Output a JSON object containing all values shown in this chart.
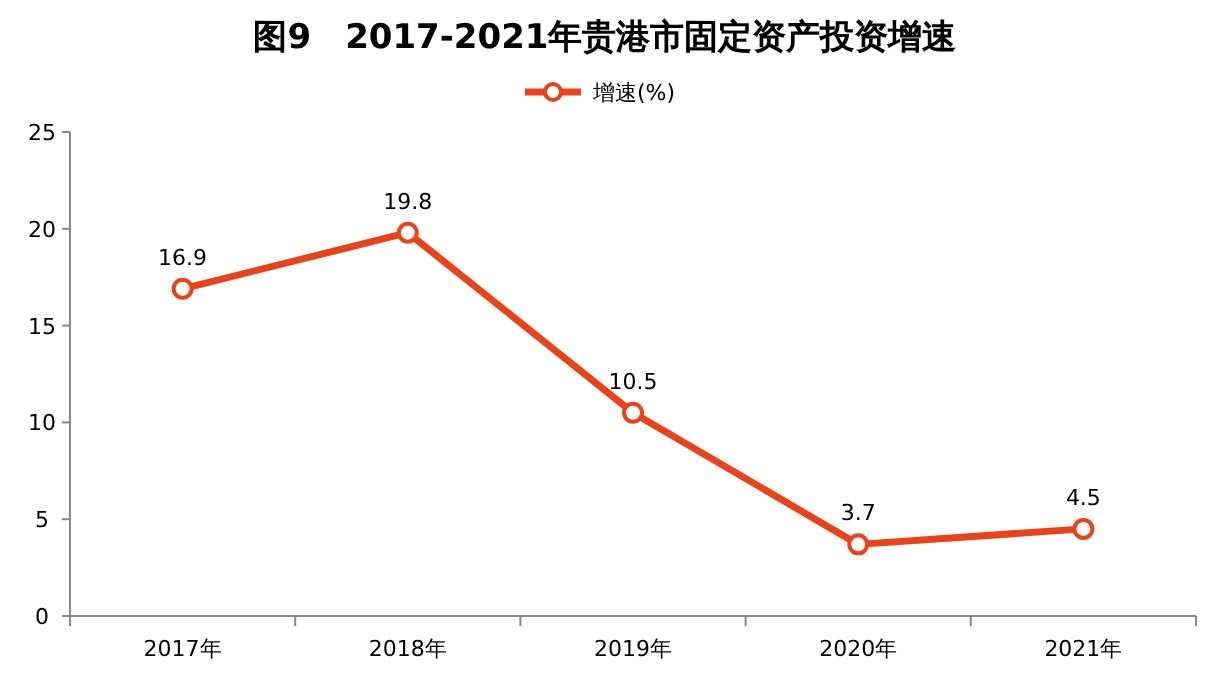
{
  "chart_data": {
    "type": "line",
    "title": "图9　2017-2021年贵港市固定资产投资增速",
    "categories": [
      "2017年",
      "2018年",
      "2019年",
      "2020年",
      "2021年"
    ],
    "series": [
      {
        "name": "增速(%)",
        "color": "#e8431b",
        "values": [
          16.9,
          19.8,
          10.5,
          3.7,
          4.5
        ]
      }
    ],
    "ylim": [
      0,
      25
    ],
    "yticks": [
      0,
      5,
      10,
      15,
      20,
      25
    ],
    "grid": false,
    "legend": "top",
    "marker": "circle",
    "line_style": "solid",
    "data_labels": true
  }
}
